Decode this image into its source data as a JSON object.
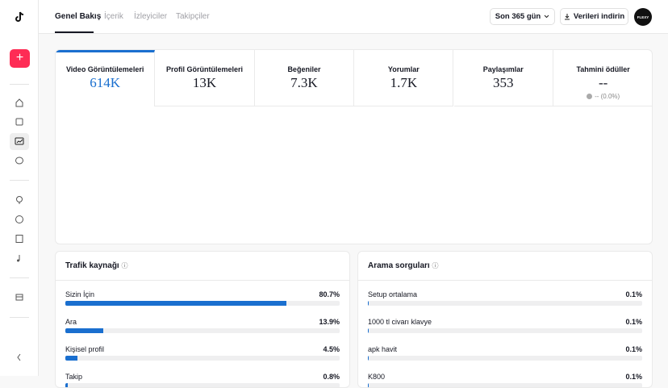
{
  "tabs": [
    "Genel Bakış",
    "İçerik",
    "İzleyiciler",
    "Takipçiler"
  ],
  "header": {
    "range_button": "Son 365 gün",
    "download_button": "Verileri indirin",
    "avatar": "FLEXY"
  },
  "metrics": [
    {
      "label": "Video Görüntülemeleri",
      "value": "614K"
    },
    {
      "label": "Profil Görüntülemeleri",
      "value": "13K"
    },
    {
      "label": "Beğeniler",
      "value": "7.3K"
    },
    {
      "label": "Yorumlar",
      "value": "1.7K"
    },
    {
      "label": "Paylaşımlar",
      "value": "353"
    },
    {
      "label": "Tahmini ödüller",
      "value": "--",
      "change": "-- (0.0%)"
    }
  ],
  "traffic": {
    "title": "Trafik kaynağı",
    "items": [
      {
        "name": "Sizin İçin",
        "value": 80.7,
        "value_label": "80.7%"
      },
      {
        "name": "Ara",
        "value": 13.9,
        "value_label": "13.9%"
      },
      {
        "name": "Kişisel profil",
        "value": 4.5,
        "value_label": "4.5%"
      },
      {
        "name": "Takip",
        "value": 0.8,
        "value_label": "0.8%"
      }
    ]
  },
  "search": {
    "title": "Arama sorguları",
    "items": [
      {
        "name": "Setup ortalama",
        "value": 0.1,
        "value_label": "0.1%"
      },
      {
        "name": "1000 tl civarı klavye",
        "value": 0.1,
        "value_label": "0.1%"
      },
      {
        "name": "apk havit",
        "value": 0.1,
        "value_label": "0.1%"
      },
      {
        "name": "K800",
        "value": 0.1,
        "value_label": "0.1%"
      }
    ]
  }
}
